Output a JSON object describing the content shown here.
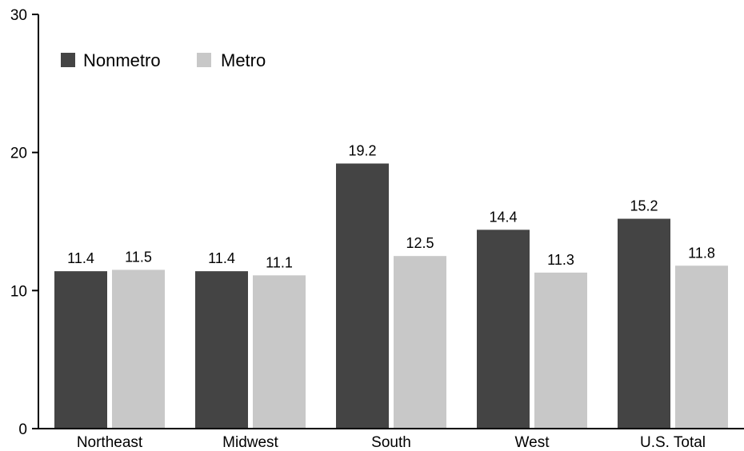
{
  "chart_data": {
    "type": "bar",
    "categories": [
      "Northeast",
      "Midwest",
      "South",
      "West",
      "U.S. Total"
    ],
    "series": [
      {
        "name": "Nonmetro",
        "color": "#444444",
        "values": [
          11.4,
          11.4,
          19.2,
          14.4,
          15.2
        ]
      },
      {
        "name": "Metro",
        "color": "#c8c8c8",
        "values": [
          11.5,
          11.1,
          12.5,
          11.3,
          11.8
        ]
      }
    ],
    "data_labels": [
      [
        "11.4",
        "11.4",
        "19.2",
        "14.4",
        "15.2"
      ],
      [
        "11.5",
        "11.1",
        "12.5",
        "11.3",
        "11.8"
      ]
    ],
    "ylim": [
      0,
      30
    ],
    "yticks": [
      0,
      10,
      20,
      30
    ],
    "grid": false,
    "legend_position": "top-left"
  }
}
